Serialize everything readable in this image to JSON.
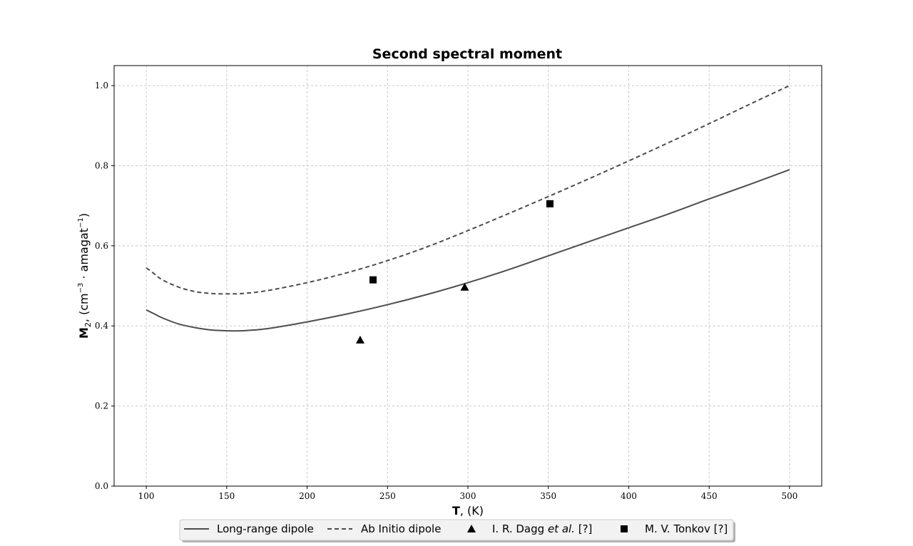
{
  "chart_data": {
    "type": "line",
    "title": "Second spectral moment",
    "xlabel_main": "T",
    "xlabel_rest": ", (K)",
    "ylabel_main": "M",
    "ylabel_sub": "2",
    "ylabel_rest": ", (cm",
    "ylabel_exp1": "−3",
    "ylabel_mid": " · amagat",
    "ylabel_exp2": "−1",
    "ylabel_close": ")",
    "xlim": [
      80,
      520
    ],
    "ylim": [
      0.0,
      1.05
    ],
    "x_ticks": [
      100,
      150,
      200,
      250,
      300,
      350,
      400,
      450,
      500
    ],
    "y_ticks": [
      0.0,
      0.2,
      0.4,
      0.6,
      0.8,
      1.0
    ],
    "x_tick_labels": [
      "100",
      "150",
      "200",
      "250",
      "300",
      "350",
      "400",
      "450",
      "500"
    ],
    "y_tick_labels": [
      "0.0",
      "0.2",
      "0.4",
      "0.6",
      "0.8",
      "1.0"
    ],
    "grid": true,
    "legend_position": "below-center",
    "series": [
      {
        "name": "Long-range dipole",
        "style": "solid",
        "color": "#4d4d4d",
        "x": [
          100,
          105,
          110,
          120,
          130,
          140,
          150,
          160,
          175,
          200,
          225,
          250,
          275,
          300,
          325,
          350,
          375,
          400,
          425,
          450,
          475,
          500
        ],
        "y": [
          0.44,
          0.43,
          0.42,
          0.405,
          0.396,
          0.39,
          0.388,
          0.388,
          0.393,
          0.41,
          0.43,
          0.453,
          0.479,
          0.508,
          0.54,
          0.575,
          0.61,
          0.645,
          0.68,
          0.717,
          0.753,
          0.79
        ]
      },
      {
        "name": "Ab Initio dipole",
        "style": "dashed",
        "color": "#4d4d4d",
        "x": [
          100,
          105,
          110,
          120,
          130,
          140,
          150,
          160,
          175,
          200,
          225,
          250,
          275,
          300,
          325,
          350,
          375,
          400,
          425,
          450,
          475,
          500
        ],
        "y": [
          0.545,
          0.53,
          0.515,
          0.497,
          0.486,
          0.481,
          0.48,
          0.481,
          0.488,
          0.508,
          0.533,
          0.563,
          0.598,
          0.638,
          0.68,
          0.723,
          0.767,
          0.812,
          0.858,
          0.905,
          0.953,
          1.0
        ]
      },
      {
        "name_prefix": "I. R. Dagg ",
        "name_italic": "et al.",
        "name_suffix": " [?]",
        "style": "marker-triangle",
        "color": "#000000",
        "x": [
          233,
          298
        ],
        "y": [
          0.365,
          0.497
        ]
      },
      {
        "name": "M. V. Tonkov [?]",
        "style": "marker-square",
        "color": "#000000",
        "x": [
          241,
          351
        ],
        "y": [
          0.515,
          0.705
        ]
      }
    ]
  }
}
